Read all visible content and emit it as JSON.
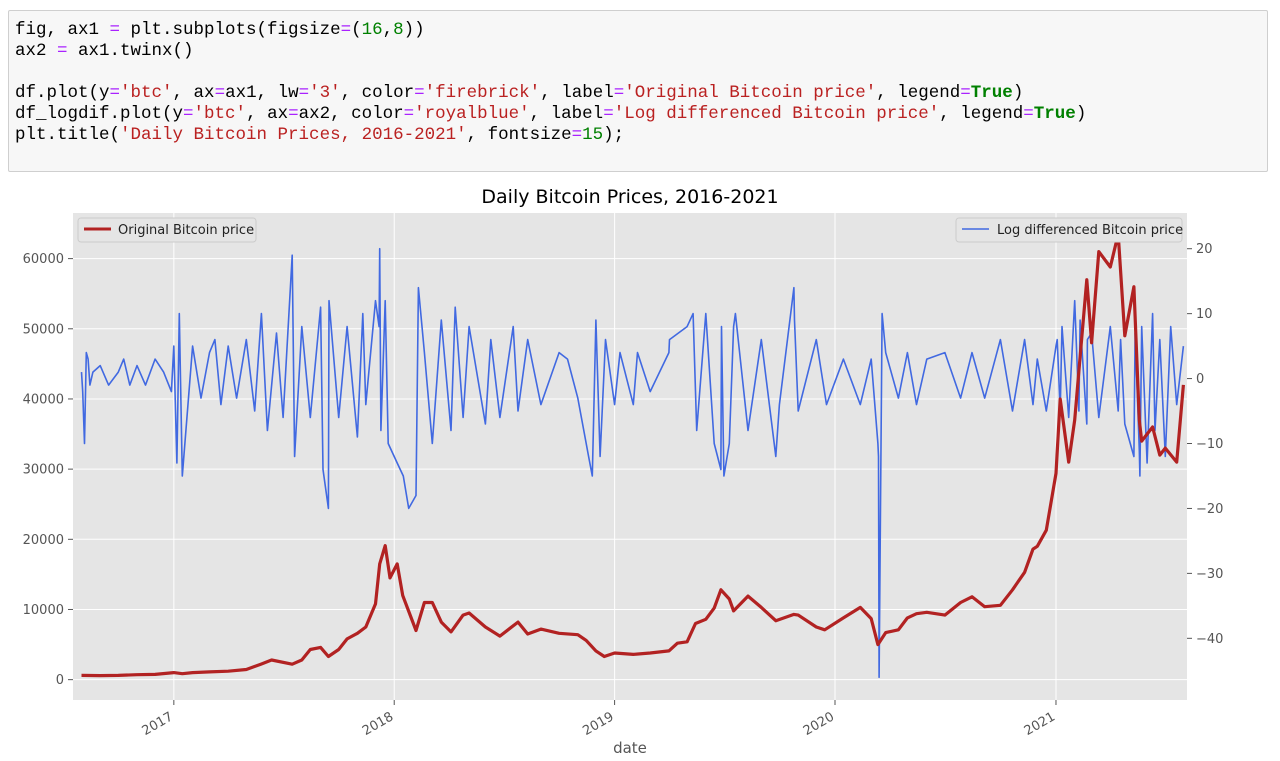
{
  "code": {
    "tokens": [
      [
        [
          "t",
          "fig, ax1 "
        ],
        [
          "o",
          "="
        ],
        [
          "t",
          " plt.subplots(figsize"
        ],
        [
          "o",
          "="
        ],
        [
          "t",
          "("
        ],
        [
          "n",
          "16"
        ],
        [
          "t",
          ","
        ],
        [
          "n",
          "8"
        ],
        [
          "t",
          "))"
        ]
      ],
      [
        [
          "t",
          "ax2 "
        ],
        [
          "o",
          "="
        ],
        [
          "t",
          " ax1.twinx()"
        ]
      ],
      [],
      [
        [
          "t",
          "df.plot(y"
        ],
        [
          "o",
          "="
        ],
        [
          "s",
          "'btc'"
        ],
        [
          "t",
          ", ax"
        ],
        [
          "o",
          "="
        ],
        [
          "t",
          "ax1, lw"
        ],
        [
          "o",
          "="
        ],
        [
          "s",
          "'3'"
        ],
        [
          "t",
          ", color"
        ],
        [
          "o",
          "="
        ],
        [
          "s",
          "'firebrick'"
        ],
        [
          "t",
          ", label"
        ],
        [
          "o",
          "="
        ],
        [
          "s",
          "'Original Bitcoin price'"
        ],
        [
          "t",
          ", legend"
        ],
        [
          "o",
          "="
        ],
        [
          "k",
          "True"
        ],
        [
          "t",
          ")"
        ]
      ],
      [
        [
          "t",
          "df_logdif.plot(y"
        ],
        [
          "o",
          "="
        ],
        [
          "s",
          "'btc'"
        ],
        [
          "t",
          ", ax"
        ],
        [
          "o",
          "="
        ],
        [
          "t",
          "ax2, color"
        ],
        [
          "o",
          "="
        ],
        [
          "s",
          "'royalblue'"
        ],
        [
          "t",
          ", label"
        ],
        [
          "o",
          "="
        ],
        [
          "s",
          "'Log differenced Bitcoin price'"
        ],
        [
          "t",
          ", legend"
        ],
        [
          "o",
          "="
        ],
        [
          "k",
          "True"
        ],
        [
          "t",
          ")"
        ]
      ],
      [
        [
          "t",
          "plt.title("
        ],
        [
          "s",
          "'Daily Bitcoin Prices, 2016-2021'"
        ],
        [
          "t",
          ", fontsize"
        ],
        [
          "o",
          "="
        ],
        [
          "n",
          "15"
        ],
        [
          "t",
          ");"
        ]
      ]
    ]
  },
  "colors": {
    "primary": "#b22222",
    "secondary": "#4169e1",
    "plot_bg": "#e5e5e5",
    "grid": "#ffffff"
  },
  "chart_data": {
    "type": "line",
    "title": "Daily Bitcoin Prices, 2016-2021",
    "xlabel": "date",
    "ylabel": "",
    "y2label": "",
    "xlim": [
      "2016-07-18",
      "2021-08-06"
    ],
    "ylim": [
      -2900,
      66500
    ],
    "y2lim": [
      -49.5,
      25.5
    ],
    "grid": true,
    "x_ticks": [
      "2017",
      "2018",
      "2019",
      "2020",
      "2021"
    ],
    "y_ticks": [
      "0",
      "10000",
      "20000",
      "30000",
      "40000",
      "50000",
      "60000"
    ],
    "y2_ticks": [
      "20",
      "10",
      "0",
      "−10",
      "−20",
      "−30",
      "−40"
    ],
    "legend_left": {
      "placement": "upper-left",
      "label": "Original Bitcoin price"
    },
    "legend_right": {
      "placement": "upper-right",
      "label": "Log differenced Bitcoin price"
    },
    "series": [
      {
        "name": "Original Bitcoin price",
        "axis": "left",
        "x": [
          "2016-08-01",
          "2016-09-01",
          "2016-10-01",
          "2016-11-01",
          "2016-12-01",
          "2017-01-01",
          "2017-01-15",
          "2017-02-01",
          "2017-03-01",
          "2017-04-01",
          "2017-05-01",
          "2017-05-25",
          "2017-06-12",
          "2017-07-16",
          "2017-08-01",
          "2017-08-15",
          "2017-09-01",
          "2017-09-14",
          "2017-10-01",
          "2017-10-15",
          "2017-11-01",
          "2017-11-15",
          "2017-12-01",
          "2017-12-08",
          "2017-12-17",
          "2017-12-25",
          "2018-01-06",
          "2018-01-15",
          "2018-02-06",
          "2018-02-20",
          "2018-03-05",
          "2018-03-20",
          "2018-04-05",
          "2018-04-25",
          "2018-05-05",
          "2018-06-01",
          "2018-06-25",
          "2018-07-25",
          "2018-08-10",
          "2018-09-01",
          "2018-10-01",
          "2018-11-01",
          "2018-11-15",
          "2018-12-01",
          "2018-12-15",
          "2019-01-01",
          "2019-02-01",
          "2019-03-01",
          "2019-04-01",
          "2019-04-15",
          "2019-05-01",
          "2019-05-15",
          "2019-06-01",
          "2019-06-15",
          "2019-06-26",
          "2019-07-10",
          "2019-07-17",
          "2019-08-10",
          "2019-09-01",
          "2019-09-25",
          "2019-10-25",
          "2019-11-01",
          "2019-12-01",
          "2019-12-15",
          "2020-01-15",
          "2020-02-12",
          "2020-03-01",
          "2020-03-12",
          "2020-03-25",
          "2020-04-15",
          "2020-04-30",
          "2020-05-15",
          "2020-06-01",
          "2020-07-01",
          "2020-07-27",
          "2020-08-15",
          "2020-09-05",
          "2020-10-01",
          "2020-10-21",
          "2020-11-10",
          "2020-11-24",
          "2020-12-01",
          "2020-12-16",
          "2021-01-01",
          "2021-01-08",
          "2021-01-22",
          "2021-02-01",
          "2021-02-10",
          "2021-02-21",
          "2021-03-01",
          "2021-03-13",
          "2021-04-01",
          "2021-04-14",
          "2021-04-25",
          "2021-05-10",
          "2021-05-19",
          "2021-05-23",
          "2021-06-10",
          "2021-06-22",
          "2021-07-01",
          "2021-07-20",
          "2021-07-31"
        ],
        "y": [
          600,
          580,
          610,
          700,
          750,
          1000,
          850,
          1000,
          1100,
          1200,
          1450,
          2200,
          2800,
          2200,
          2800,
          4300,
          4600,
          3300,
          4300,
          5800,
          6600,
          7500,
          10800,
          16500,
          19100,
          14500,
          16500,
          12000,
          7000,
          11000,
          11000,
          8200,
          6800,
          9200,
          9500,
          7500,
          6200,
          8200,
          6500,
          7200,
          6600,
          6400,
          5600,
          4100,
          3300,
          3800,
          3600,
          3800,
          4100,
          5200,
          5400,
          8000,
          8600,
          10200,
          12800,
          11500,
          9800,
          11900,
          10300,
          8400,
          9300,
          9200,
          7500,
          7100,
          8800,
          10300,
          8700,
          5000,
          6700,
          7100,
          8800,
          9400,
          9600,
          9200,
          11000,
          11800,
          10400,
          10600,
          12800,
          15300,
          18600,
          19000,
          21300,
          29400,
          40000,
          31000,
          37000,
          46000,
          57000,
          48000,
          61000,
          58800,
          63500,
          49000,
          56000,
          37000,
          34000,
          36000,
          32000,
          33000,
          31000,
          42000
        ]
      },
      {
        "name": "Log differenced Bitcoin price",
        "axis": "right",
        "x": [
          "2016-08-01",
          "2016-08-03",
          "2016-08-06",
          "2016-08-09",
          "2016-08-12",
          "2016-08-15",
          "2016-08-20",
          "2016-09-01",
          "2016-09-15",
          "2016-10-01",
          "2016-10-10",
          "2016-10-20",
          "2016-11-01",
          "2016-11-15",
          "2016-12-01",
          "2016-12-15",
          "2016-12-28",
          "2017-01-01",
          "2017-01-06",
          "2017-01-10",
          "2017-01-15",
          "2017-02-01",
          "2017-02-15",
          "2017-03-01",
          "2017-03-10",
          "2017-03-20",
          "2017-04-01",
          "2017-04-15",
          "2017-05-01",
          "2017-05-15",
          "2017-05-26",
          "2017-06-05",
          "2017-06-20",
          "2017-07-01",
          "2017-07-16",
          "2017-07-20",
          "2017-08-01",
          "2017-08-15",
          "2017-09-01",
          "2017-09-05",
          "2017-09-14",
          "2017-09-15",
          "2017-10-01",
          "2017-10-15",
          "2017-11-01",
          "2017-11-10",
          "2017-11-15",
          "2017-12-01",
          "2017-12-07",
          "2017-12-08",
          "2017-12-10",
          "2017-12-17",
          "2017-12-22",
          "2018-01-06",
          "2018-01-16",
          "2018-01-25",
          "2018-02-06",
          "2018-02-10",
          "2018-02-20",
          "2018-03-05",
          "2018-03-20",
          "2018-04-05",
          "2018-04-12",
          "2018-04-25",
          "2018-05-05",
          "2018-06-01",
          "2018-06-10",
          "2018-06-25",
          "2018-07-17",
          "2018-07-25",
          "2018-08-10",
          "2018-09-01",
          "2018-10-01",
          "2018-10-15",
          "2018-11-01",
          "2018-11-15",
          "2018-11-19",
          "2018-11-25",
          "2018-12-01",
          "2018-12-08",
          "2018-12-17",
          "2019-01-01",
          "2019-01-10",
          "2019-02-01",
          "2019-02-08",
          "2019-03-01",
          "2019-04-01",
          "2019-04-02",
          "2019-05-01",
          "2019-05-11",
          "2019-05-17",
          "2019-06-01",
          "2019-06-15",
          "2019-06-26",
          "2019-06-27",
          "2019-07-01",
          "2019-07-10",
          "2019-07-17",
          "2019-07-20",
          "2019-08-10",
          "2019-09-01",
          "2019-09-25",
          "2019-10-01",
          "2019-10-25",
          "2019-10-26",
          "2019-11-01",
          "2019-12-01",
          "2019-12-18",
          "2020-01-15",
          "2020-02-12",
          "2020-03-01",
          "2020-03-12",
          "2020-03-13",
          "2020-03-14",
          "2020-03-19",
          "2020-03-25",
          "2020-04-15",
          "2020-04-30",
          "2020-05-15",
          "2020-06-01",
          "2020-07-01",
          "2020-07-27",
          "2020-08-15",
          "2020-09-05",
          "2020-10-01",
          "2020-10-21",
          "2020-11-10",
          "2020-11-24",
          "2020-12-01",
          "2020-12-16",
          "2021-01-01",
          "2021-01-03",
          "2021-01-08",
          "2021-01-11",
          "2021-01-22",
          "2021-02-01",
          "2021-02-08",
          "2021-02-10",
          "2021-02-21",
          "2021-02-22",
          "2021-03-01",
          "2021-03-13",
          "2021-04-01",
          "2021-04-14",
          "2021-04-18",
          "2021-04-25",
          "2021-05-10",
          "2021-05-12",
          "2021-05-19",
          "2021-05-20",
          "2021-05-23",
          "2021-06-01",
          "2021-06-10",
          "2021-06-14",
          "2021-06-22",
          "2021-07-01",
          "2021-07-10",
          "2021-07-20",
          "2021-07-31"
        ],
        "y": [
          1,
          -2,
          -10,
          4,
          3,
          -1,
          1,
          2,
          -1,
          1,
          3,
          -1,
          2,
          -1,
          3,
          1,
          -2,
          5,
          -13,
          10,
          -15,
          5,
          -3,
          4,
          6,
          -4,
          5,
          -3,
          6,
          -5,
          10,
          -8,
          7,
          -6,
          19,
          -12,
          8,
          -6,
          11,
          -14,
          -20,
          12,
          -6,
          8,
          -9,
          10,
          -4,
          12,
          8,
          20,
          -8,
          12,
          -10,
          -13,
          -15,
          -20,
          -18,
          14,
          4,
          -10,
          9,
          -8,
          11,
          -6,
          8,
          -7,
          6,
          -6,
          8,
          -5,
          6,
          -4,
          4,
          3,
          -3,
          -10,
          -12,
          -15,
          9,
          -12,
          6,
          -4,
          4,
          -4,
          4,
          -2,
          4,
          6,
          8,
          10,
          -8,
          10,
          -10,
          -14,
          8,
          -15,
          -10,
          8,
          10,
          -8,
          6,
          -12,
          -4,
          14,
          9,
          -5,
          6,
          -4,
          3,
          -4,
          3,
          -10,
          -12,
          -46,
          10,
          4,
          -3,
          4,
          -4,
          3,
          4,
          -3,
          4,
          -3,
          6,
          -5,
          6,
          -4,
          3,
          -5,
          5,
          6,
          -5,
          8,
          -6,
          12,
          -5,
          9,
          -7,
          6,
          7,
          -6,
          8,
          -5,
          6,
          -7,
          -12,
          7,
          -11,
          -15,
          8,
          -13,
          10,
          -8,
          6,
          -12,
          8,
          -4,
          5
        ]
      }
    ]
  }
}
